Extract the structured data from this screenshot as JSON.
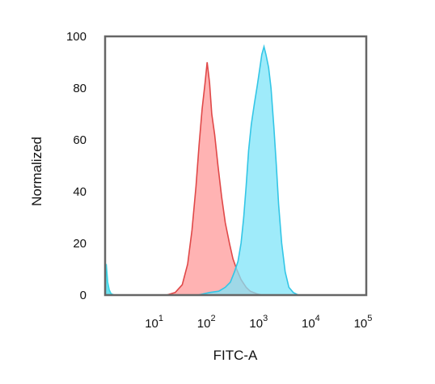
{
  "chart_data": {
    "type": "area",
    "title": "",
    "xlabel": "FITC-A",
    "ylabel": "Normalized",
    "x_scale": "log",
    "xlim": [
      1,
      100000
    ],
    "ylim": [
      0,
      100
    ],
    "grid": false,
    "legend": "none",
    "x_ticks": [
      {
        "value": 10,
        "base": "10",
        "exp": "1"
      },
      {
        "value": 100,
        "base": "10",
        "exp": "2"
      },
      {
        "value": 1000,
        "base": "10",
        "exp": "3"
      },
      {
        "value": 10000,
        "base": "10",
        "exp": "4"
      },
      {
        "value": 100000,
        "base": "10",
        "exp": "5"
      }
    ],
    "y_ticks": [
      {
        "value": 0,
        "label": "0"
      },
      {
        "value": 20,
        "label": "20"
      },
      {
        "value": 40,
        "label": "40"
      },
      {
        "value": 60,
        "label": "60"
      },
      {
        "value": 80,
        "label": "80"
      },
      {
        "value": 100,
        "label": "100"
      }
    ],
    "series": [
      {
        "color": "#ff9a9a",
        "stroke": "#e04848",
        "points": [
          [
            15,
            0
          ],
          [
            22,
            1
          ],
          [
            30,
            4
          ],
          [
            38,
            12
          ],
          [
            46,
            25
          ],
          [
            55,
            42
          ],
          [
            63,
            58
          ],
          [
            72,
            72
          ],
          [
            82,
            82
          ],
          [
            90,
            90
          ],
          [
            100,
            82
          ],
          [
            110,
            70
          ],
          [
            125,
            62
          ],
          [
            145,
            50
          ],
          [
            170,
            38
          ],
          [
            200,
            28
          ],
          [
            240,
            20
          ],
          [
            280,
            14
          ],
          [
            330,
            10
          ],
          [
            400,
            6
          ],
          [
            500,
            3
          ],
          [
            600,
            1.5
          ],
          [
            800,
            0.5
          ],
          [
            1000,
            0
          ]
        ]
      },
      {
        "color": "#7fe4f8",
        "stroke": "#33c6e6",
        "points": [
          [
            60,
            0
          ],
          [
            100,
            1
          ],
          [
            150,
            1.5
          ],
          [
            200,
            3
          ],
          [
            250,
            5
          ],
          [
            300,
            9
          ],
          [
            350,
            13
          ],
          [
            400,
            20
          ],
          [
            450,
            30
          ],
          [
            500,
            42
          ],
          [
            560,
            56
          ],
          [
            630,
            66
          ],
          [
            720,
            74
          ],
          [
            820,
            81
          ],
          [
            920,
            88
          ],
          [
            1000,
            93
          ],
          [
            1100,
            96
          ],
          [
            1200,
            93
          ],
          [
            1350,
            88
          ],
          [
            1500,
            80
          ],
          [
            1700,
            65
          ],
          [
            1900,
            50
          ],
          [
            2100,
            35
          ],
          [
            2400,
            20
          ],
          [
            2800,
            9
          ],
          [
            3300,
            3
          ],
          [
            4000,
            1
          ],
          [
            5000,
            0
          ]
        ]
      },
      {
        "color": "#3ad6e8",
        "stroke": "#3ad6e8",
        "points": [
          [
            1,
            0
          ],
          [
            1.05,
            12
          ],
          [
            1.12,
            5
          ],
          [
            1.2,
            2
          ],
          [
            1.3,
            0.5
          ],
          [
            1.5,
            0
          ]
        ]
      }
    ]
  }
}
